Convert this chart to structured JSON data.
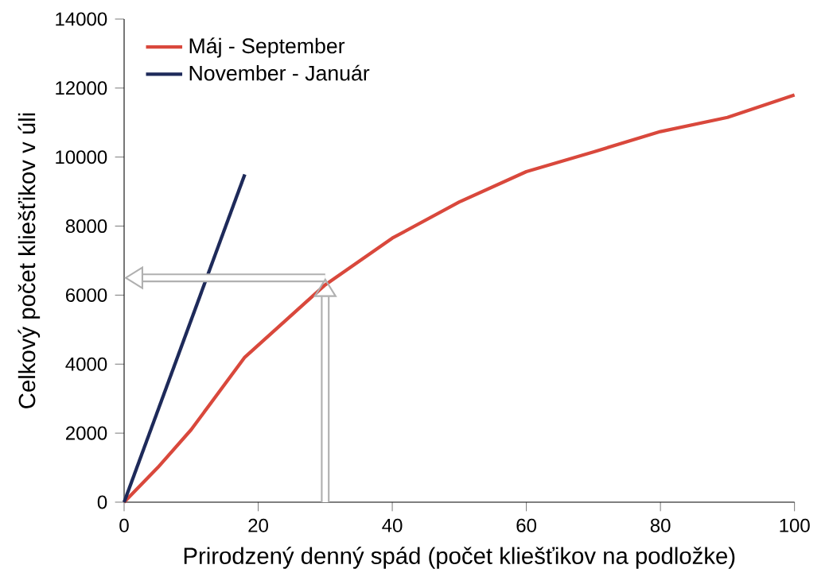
{
  "chart_data": {
    "type": "line",
    "xlabel": "Prirodzený denný spád (počet kliešťikov na podložke)",
    "ylabel": "Celkový počet kliešťikov v úli",
    "xlim": [
      0,
      100
    ],
    "xticks": [
      0,
      20,
      40,
      60,
      80,
      100
    ],
    "ylim": [
      0,
      14000
    ],
    "yticks": [
      0,
      2000,
      4000,
      6000,
      8000,
      10000,
      12000,
      14000
    ],
    "legend": "top left",
    "grid": false,
    "series": [
      {
        "name": "Máj - September",
        "color": "#d9483c",
        "x": [
          0,
          5,
          10,
          18,
          30,
          40,
          50,
          60,
          70,
          80,
          90,
          100
        ],
        "values": [
          0,
          1000,
          2100,
          4200,
          6300,
          7650,
          8700,
          9580,
          10150,
          10740,
          11150,
          11800
        ]
      },
      {
        "name": "November - Január",
        "color": "#1e2a5a",
        "x": [
          0,
          18
        ],
        "values": [
          0,
          9500
        ]
      }
    ],
    "ref_lines": [
      {
        "axis": "y",
        "value": 6500,
        "color": "#b0b0b0"
      },
      {
        "axis": "x",
        "value": 30,
        "color": "#b0b0b0"
      }
    ]
  }
}
